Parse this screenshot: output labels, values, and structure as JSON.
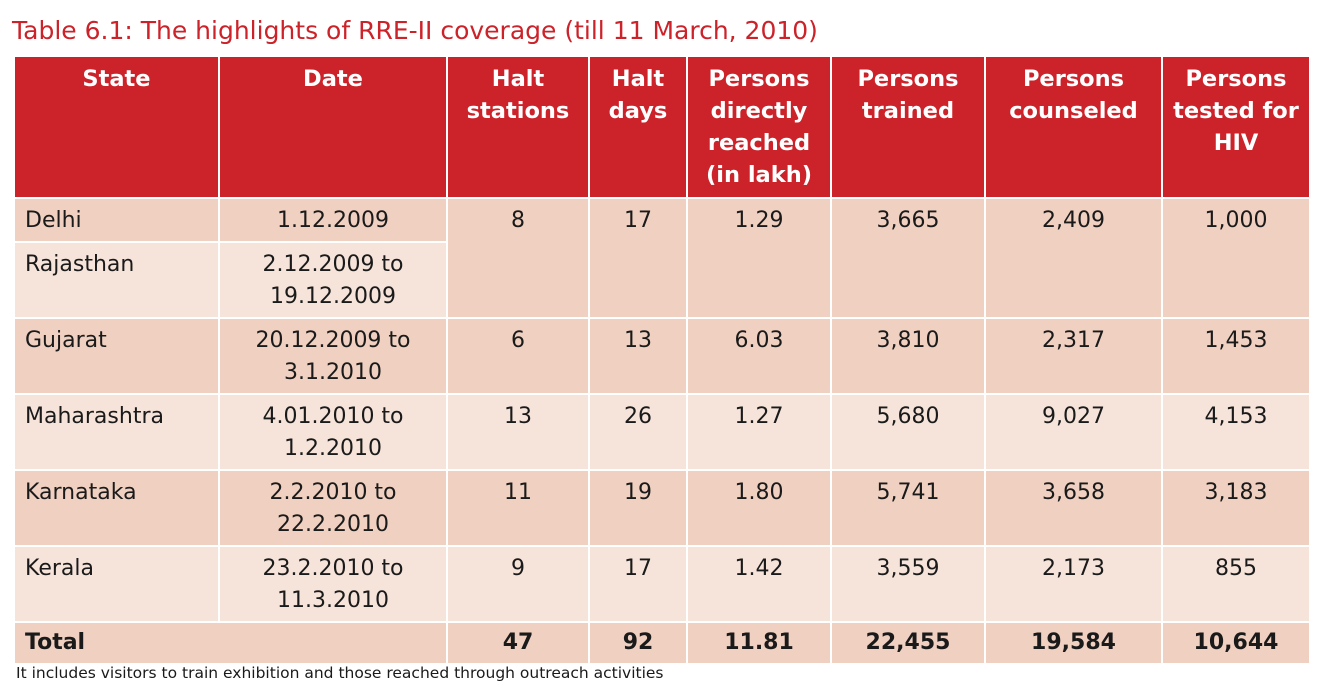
{
  "title": "Table 6.1: The highlights of RRE-II coverage (till 11 March, 2010)",
  "colors": {
    "header": "#cc2229",
    "row_dark": "#f0d0c0",
    "row_light": "#f6e4da",
    "title": "#cc2229"
  },
  "headers": [
    "State",
    "Date",
    "Halt stations",
    "Halt days",
    "Persons directly reached (in lakh)",
    "Persons trained",
    "Persons counseled",
    "Persons tested for HIV"
  ],
  "delhi_rajasthan": {
    "delhi": {
      "state": "Delhi",
      "date": "1.12.2009"
    },
    "rajasthan": {
      "state": "Rajasthan",
      "date": "2.12.2009 to 19.12.2009"
    },
    "combined": [
      "8",
      "17",
      "1.29",
      "3,665",
      "2,409",
      "1,000"
    ]
  },
  "rows": [
    {
      "state": "Gujarat",
      "date": "20.12.2009 to 3.1.2010",
      "values": [
        "6",
        "13",
        "6.03",
        "3,810",
        "2,317",
        "1,453"
      ]
    },
    {
      "state": "Maharashtra",
      "date": "4.01.2010 to 1.2.2010",
      "values": [
        "13",
        "26",
        "1.27",
        "5,680",
        "9,027",
        "4,153"
      ]
    },
    {
      "state": "Karnataka",
      "date": "2.2.2010 to 22.2.2010",
      "values": [
        "11",
        "19",
        "1.80",
        "5,741",
        "3,658",
        "3,183"
      ]
    },
    {
      "state": "Kerala",
      "date": "23.2.2010 to 11.3.2010",
      "values": [
        "9",
        "17",
        "1.42",
        "3,559",
        "2,173",
        "855"
      ]
    }
  ],
  "total": {
    "label": "Total",
    "values": [
      "47",
      "92",
      "11.81",
      "22,455",
      "19,584",
      "10,644"
    ]
  },
  "footnote": "It includes visitors to train exhibition and those reached through outreach activities"
}
